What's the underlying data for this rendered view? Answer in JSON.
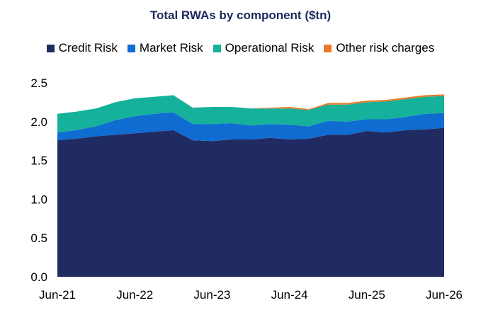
{
  "chart_data": {
    "type": "area",
    "stacked": true,
    "title": "Total RWAs by component ($tn)",
    "xlabel": "",
    "ylabel": "",
    "ylim": [
      0,
      2.5
    ],
    "y_ticks": [
      "0.0",
      "0.5",
      "1.0",
      "1.5",
      "2.0",
      "2.5"
    ],
    "x_tick_labels": [
      "Jun-21",
      "Jun-22",
      "Jun-23",
      "Jun-24",
      "Jun-25",
      "Jun-26"
    ],
    "grid": false,
    "legend_position": "top",
    "x": [
      "Jun-21",
      "Sep-21",
      "Dec-21",
      "Mar-22",
      "Jun-22",
      "Sep-22",
      "Dec-22",
      "Mar-23",
      "Jun-23",
      "Sep-23",
      "Dec-23",
      "Mar-24",
      "Jun-24",
      "Sep-24",
      "Dec-24",
      "Mar-25",
      "Jun-25",
      "Sep-25",
      "Dec-25",
      "Mar-26",
      "Jun-26"
    ],
    "series": [
      {
        "name": "Credit Risk",
        "color": "#212b63",
        "values": [
          1.76,
          1.78,
          1.81,
          1.83,
          1.85,
          1.87,
          1.89,
          1.76,
          1.75,
          1.77,
          1.77,
          1.79,
          1.77,
          1.78,
          1.83,
          1.83,
          1.88,
          1.86,
          1.89,
          1.9,
          1.92
        ]
      },
      {
        "name": "Market Risk",
        "color": "#0f6cd1",
        "values": [
          0.1,
          0.11,
          0.13,
          0.19,
          0.22,
          0.23,
          0.23,
          0.21,
          0.22,
          0.21,
          0.18,
          0.18,
          0.19,
          0.16,
          0.18,
          0.17,
          0.15,
          0.17,
          0.17,
          0.2,
          0.19
        ]
      },
      {
        "name": "Operational Risk",
        "color": "#15b19a",
        "values": [
          0.24,
          0.24,
          0.23,
          0.23,
          0.23,
          0.22,
          0.22,
          0.21,
          0.22,
          0.21,
          0.22,
          0.2,
          0.21,
          0.21,
          0.21,
          0.22,
          0.22,
          0.23,
          0.23,
          0.22,
          0.22
        ]
      },
      {
        "name": "Other risk charges",
        "color": "#ea7a27",
        "values": [
          0,
          0,
          0,
          0,
          0,
          0,
          0,
          0,
          0,
          0,
          0,
          0.01,
          0.02,
          0.01,
          0.02,
          0.02,
          0.02,
          0.02,
          0.02,
          0.02,
          0.02
        ]
      }
    ]
  }
}
